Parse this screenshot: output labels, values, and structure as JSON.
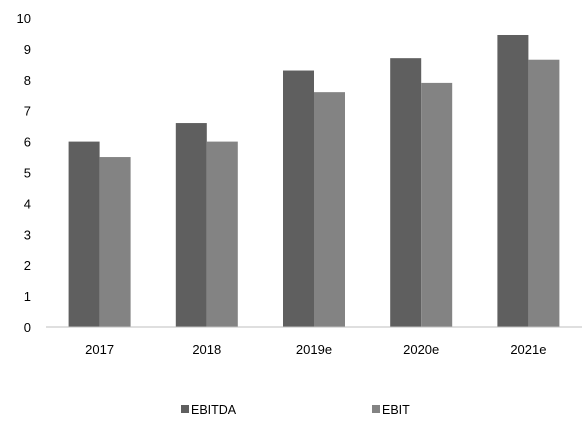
{
  "chart_data": {
    "type": "bar",
    "title": "",
    "xlabel": "",
    "ylabel": "",
    "ylim": [
      0,
      10
    ],
    "yticks": [
      0,
      1,
      2,
      3,
      4,
      5,
      6,
      7,
      8,
      9,
      10
    ],
    "grid": false,
    "legend_position": "bottom",
    "categories": [
      "2017",
      "2018",
      "2019e",
      "2020e",
      "2021e"
    ],
    "series": [
      {
        "name": "EBITDA",
        "color": "#5f5f5f",
        "values": [
          6.0,
          6.6,
          8.3,
          8.7,
          9.45
        ]
      },
      {
        "name": "EBIT",
        "color": "#838383",
        "values": [
          5.5,
          6.0,
          7.6,
          7.9,
          8.65
        ]
      }
    ]
  }
}
